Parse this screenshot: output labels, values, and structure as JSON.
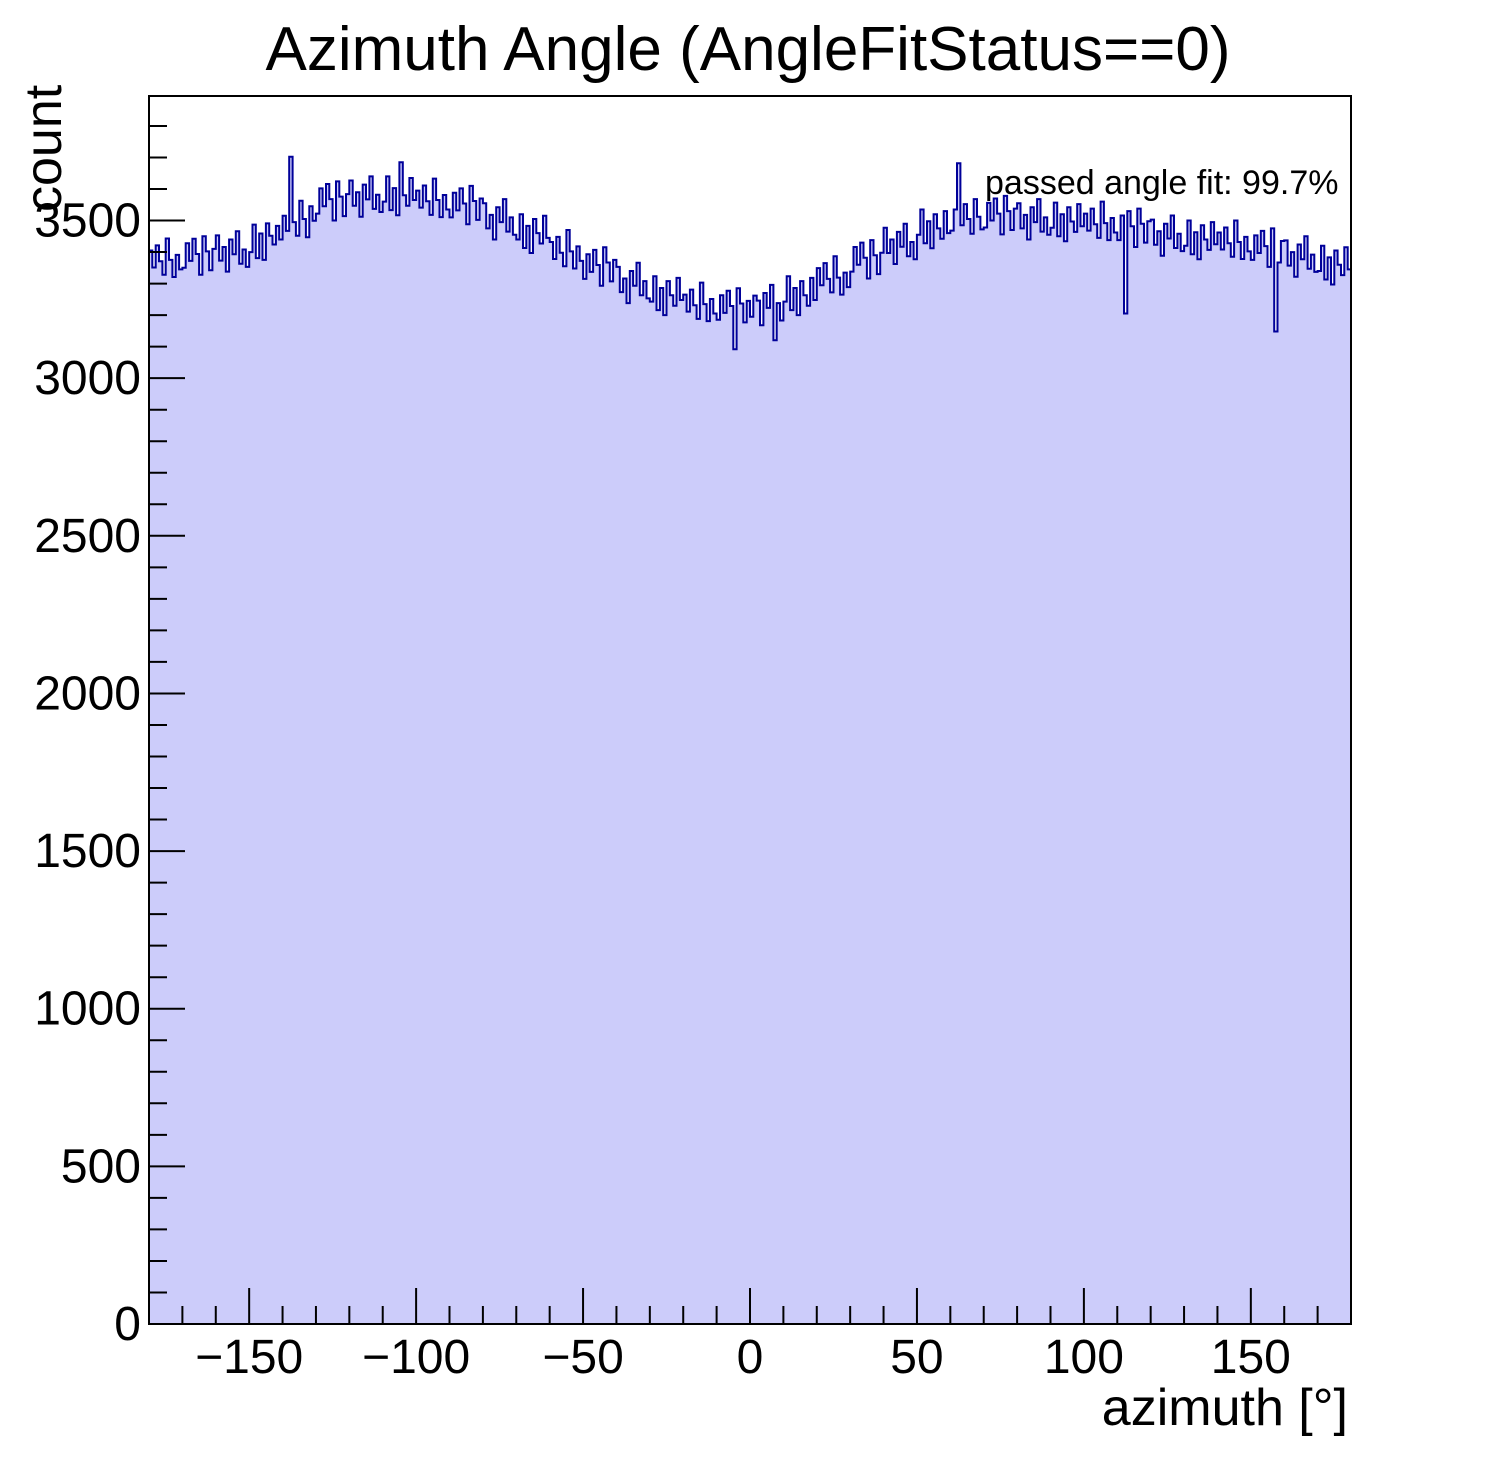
{
  "page": {
    "background": "#ffffff"
  },
  "chart_data": {
    "type": "bar",
    "subtype": "histogram",
    "title": "Azimuth Angle (AngleFitStatus==0)",
    "xlabel": "azimuth [°]",
    "ylabel": "count",
    "annotation": "passed angle fit: 99.7%",
    "xlim": [
      -180,
      180
    ],
    "ylim": [
      0,
      3895
    ],
    "grid": false,
    "legend": null,
    "fill_color": "#ccccfa",
    "line_color": "#000099",
    "frame_color": "#000000",
    "bins_start": -180,
    "bin_width": 1,
    "n_bins": 360,
    "x_major_ticks": [
      -150,
      -100,
      -50,
      0,
      50,
      100,
      150
    ],
    "x_tick_labels": [
      "−150",
      "−100",
      "−50",
      "0",
      "50",
      "100",
      "150"
    ],
    "x_minor_step": 10,
    "y_major_ticks": [
      500,
      1000,
      1500,
      2000,
      2500,
      3000,
      3500
    ],
    "y_tick_labels": [
      "500",
      "1000",
      "1500",
      "2000",
      "2500",
      "3000",
      "3500"
    ],
    "y_zero_label": "0",
    "y_minor_step": 100,
    "values": [
      3405,
      3351,
      3421,
      3371,
      3328,
      3443,
      3375,
      3321,
      3391,
      3345,
      3350,
      3428,
      3372,
      3442,
      3394,
      3328,
      3450,
      3402,
      3342,
      3410,
      3453,
      3373,
      3416,
      3338,
      3440,
      3393,
      3466,
      3363,
      3408,
      3353,
      3400,
      3487,
      3381,
      3459,
      3375,
      3491,
      3452,
      3424,
      3483,
      3440,
      3515,
      3467,
      3702,
      3495,
      3452,
      3563,
      3505,
      3447,
      3545,
      3499,
      3522,
      3602,
      3545,
      3616,
      3568,
      3500,
      3624,
      3576,
      3514,
      3584,
      3627,
      3547,
      3590,
      3512,
      3614,
      3567,
      3640,
      3537,
      3582,
      3527,
      3560,
      3640,
      3533,
      3603,
      3517,
      3685,
      3580,
      3547,
      3635,
      3565,
      3595,
      3541,
      3611,
      3561,
      3518,
      3633,
      3565,
      3511,
      3581,
      3535,
      3510,
      3588,
      3532,
      3602,
      3554,
      3488,
      3610,
      3562,
      3502,
      3570,
      3555,
      3475,
      3518,
      3440,
      3542,
      3495,
      3568,
      3465,
      3510,
      3455,
      3440,
      3520,
      3413,
      3483,
      3397,
      3505,
      3460,
      3427,
      3515,
      3445,
      3432,
      3378,
      3448,
      3398,
      3355,
      3470,
      3402,
      3348,
      3418,
      3372,
      3315,
      3393,
      3337,
      3407,
      3359,
      3293,
      3415,
      3367,
      3307,
      3375,
      3353,
      3273,
      3316,
      3238,
      3340,
      3293,
      3366,
      3263,
      3308,
      3253,
      3243,
      3323,
      3216,
      3286,
      3200,
      3308,
      3263,
      3230,
      3318,
      3248,
      3265,
      3211,
      3281,
      3231,
      3188,
      3303,
      3235,
      3181,
      3251,
      3205,
      3185,
      3263,
      3207,
      3277,
      3229,
      3092,
      3285,
      3237,
      3177,
      3245,
      3195,
      3262,
      3246,
      3168,
      3270,
      3223,
      3296,
      3120,
      3238,
      3183,
      3243,
      3323,
      3216,
      3286,
      3200,
      3308,
      3263,
      3230,
      3318,
      3248,
      3349,
      3295,
      3365,
      3315,
      3272,
      3387,
      3319,
      3265,
      3335,
      3289,
      3338,
      3416,
      3360,
      3430,
      3382,
      3316,
      3438,
      3390,
      3330,
      3398,
      3477,
      3397,
      3440,
      3362,
      3464,
      3417,
      3490,
      3387,
      3432,
      3377,
      3455,
      3535,
      3428,
      3498,
      3412,
      3520,
      3475,
      3442,
      3530,
      3460,
      3468,
      3535,
      3682,
      3485,
      3552,
      3505,
      3458,
      3568,
      3512,
      3472,
      3478,
      3556,
      3500,
      3570,
      3522,
      3456,
      3578,
      3530,
      3470,
      3538,
      3555,
      3475,
      3518,
      3440,
      3542,
      3495,
      3568,
      3465,
      3510,
      3455,
      3477,
      3557,
      3450,
      3520,
      3434,
      3542,
      3497,
      3464,
      3552,
      3482,
      3522,
      3468,
      3538,
      3488,
      3445,
      3560,
      3492,
      3438,
      3508,
      3462,
      3438,
      3516,
      3205,
      3530,
      3482,
      3416,
      3538,
      3490,
      3430,
      3498,
      3503,
      3423,
      3466,
      3388,
      3490,
      3443,
      3516,
      3413,
      3458,
      3403,
      3420,
      3500,
      3393,
      3463,
      3377,
      3485,
      3440,
      3407,
      3495,
      3425,
      3462,
      3408,
      3478,
      3428,
      3385,
      3500,
      3432,
      3378,
      3448,
      3402,
      3375,
      3453,
      3397,
      3467,
      3419,
      3353,
      3475,
      3148,
      3367,
      3435,
      3437,
      3357,
      3400,
      3322,
      3424,
      3377,
      3450,
      3347,
      3392,
      3337,
      3340,
      3420,
      3313,
      3383,
      3297,
      3405,
      3360,
      3327,
      3415,
      3345
    ]
  }
}
